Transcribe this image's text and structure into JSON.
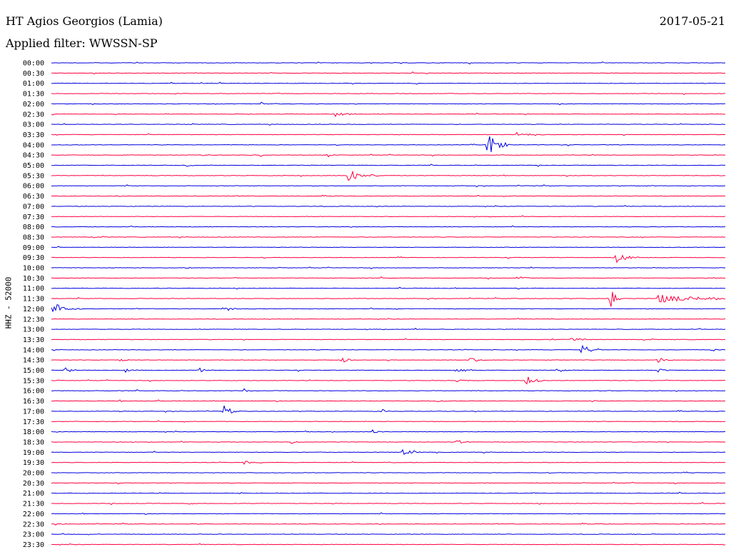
{
  "header": {
    "station": "HT Agios Georgios (Lamia)",
    "date": "2017-05-21",
    "filter": "Applied filter: WWSSN-SP"
  },
  "colors": {
    "blue": "#0000e0",
    "red": "#ff0040"
  },
  "chart_data": {
    "type": "line",
    "ylabel": "HHZ - 52000",
    "rows": [
      {
        "label": "00:00",
        "color": "blue",
        "events": []
      },
      {
        "label": "00:30",
        "color": "red",
        "events": []
      },
      {
        "label": "01:00",
        "color": "blue",
        "events": []
      },
      {
        "label": "01:30",
        "color": "red",
        "events": [
          {
            "t": 0.52,
            "amp": 3,
            "dur": 0.01
          }
        ]
      },
      {
        "label": "02:00",
        "color": "blue",
        "events": [
          {
            "t": 0.31,
            "amp": 3,
            "dur": 0.01
          }
        ]
      },
      {
        "label": "02:30",
        "color": "red",
        "events": [
          {
            "t": 0.42,
            "amp": 4,
            "dur": 0.03
          },
          {
            "t": 0.63,
            "amp": 2,
            "dur": 0.01
          }
        ]
      },
      {
        "label": "03:00",
        "color": "blue",
        "events": []
      },
      {
        "label": "03:30",
        "color": "red",
        "events": [
          {
            "t": 0.69,
            "amp": 3,
            "dur": 0.04
          }
        ]
      },
      {
        "label": "04:00",
        "color": "blue",
        "events": [
          {
            "t": 0.645,
            "amp": 20,
            "dur": 0.03
          }
        ]
      },
      {
        "label": "04:30",
        "color": "red",
        "events": [
          {
            "t": 0.31,
            "amp": 5,
            "dur": 0.005
          },
          {
            "t": 0.41,
            "amp": 3,
            "dur": 0.01
          },
          {
            "t": 0.22,
            "amp": 2,
            "dur": 0.01
          }
        ]
      },
      {
        "label": "05:00",
        "color": "blue",
        "events": [
          {
            "t": 0.38,
            "amp": 2,
            "dur": 0.01
          },
          {
            "t": 0.2,
            "amp": 2,
            "dur": 0.01
          }
        ]
      },
      {
        "label": "05:30",
        "color": "red",
        "events": [
          {
            "t": 0.44,
            "amp": 9,
            "dur": 0.04
          }
        ]
      },
      {
        "label": "06:00",
        "color": "blue",
        "events": [
          {
            "t": 0.88,
            "amp": 2,
            "dur": 0.01
          }
        ]
      },
      {
        "label": "06:30",
        "color": "red",
        "events": []
      },
      {
        "label": "07:00",
        "color": "blue",
        "events": []
      },
      {
        "label": "07:30",
        "color": "red",
        "events": []
      },
      {
        "label": "08:00",
        "color": "blue",
        "events": []
      },
      {
        "label": "08:30",
        "color": "red",
        "events": []
      },
      {
        "label": "09:00",
        "color": "blue",
        "events": []
      },
      {
        "label": "09:30",
        "color": "red",
        "events": [
          {
            "t": 0.835,
            "amp": 9,
            "dur": 0.03
          }
        ]
      },
      {
        "label": "10:00",
        "color": "blue",
        "events": [
          {
            "t": 0.2,
            "amp": 2,
            "dur": 0.01
          }
        ]
      },
      {
        "label": "10:30",
        "color": "red",
        "events": [
          {
            "t": 0.69,
            "amp": 2,
            "dur": 0.03
          }
        ]
      },
      {
        "label": "11:00",
        "color": "blue",
        "events": []
      },
      {
        "label": "11:30",
        "color": "red",
        "events": [
          {
            "t": 0.83,
            "amp": 35,
            "dur": 0.01
          },
          {
            "t": 0.9,
            "amp": 6,
            "dur": 0.1
          }
        ]
      },
      {
        "label": "12:00",
        "color": "blue",
        "events": [
          {
            "t": 0.0,
            "amp": 9,
            "dur": 0.04
          },
          {
            "t": 0.26,
            "amp": 4,
            "dur": 0.01
          }
        ]
      },
      {
        "label": "12:30",
        "color": "red",
        "events": []
      },
      {
        "label": "13:00",
        "color": "blue",
        "events": []
      },
      {
        "label": "13:30",
        "color": "red",
        "events": [
          {
            "t": 0.77,
            "amp": 4,
            "dur": 0.03
          },
          {
            "t": 0.74,
            "amp": 2,
            "dur": 0.01
          }
        ]
      },
      {
        "label": "14:00",
        "color": "blue",
        "events": [
          {
            "t": 0.785,
            "amp": 7,
            "dur": 0.03
          },
          {
            "t": 0.98,
            "amp": 5,
            "dur": 0.01
          }
        ]
      },
      {
        "label": "14:30",
        "color": "red",
        "events": [
          {
            "t": 0.43,
            "amp": 4,
            "dur": 0.02
          },
          {
            "t": 0.62,
            "amp": 5,
            "dur": 0.02
          },
          {
            "t": 0.9,
            "amp": 4,
            "dur": 0.02
          },
          {
            "t": 0.1,
            "amp": 2,
            "dur": 0.02
          }
        ]
      },
      {
        "label": "15:00",
        "color": "blue",
        "events": [
          {
            "t": 0.02,
            "amp": 4,
            "dur": 0.02
          },
          {
            "t": 0.11,
            "amp": 3,
            "dur": 0.02
          },
          {
            "t": 0.22,
            "amp": 3,
            "dur": 0.02
          },
          {
            "t": 0.6,
            "amp": 4,
            "dur": 0.03
          },
          {
            "t": 0.75,
            "amp": 4,
            "dur": 0.02
          },
          {
            "t": 0.9,
            "amp": 3,
            "dur": 0.02
          }
        ]
      },
      {
        "label": "15:30",
        "color": "red",
        "events": [
          {
            "t": 0.705,
            "amp": 10,
            "dur": 0.02
          },
          {
            "t": 0.6,
            "amp": 2,
            "dur": 0.03
          }
        ]
      },
      {
        "label": "16:00",
        "color": "blue",
        "events": [
          {
            "t": 0.285,
            "amp": 3,
            "dur": 0.01
          }
        ]
      },
      {
        "label": "16:30",
        "color": "red",
        "events": [
          {
            "t": 0.1,
            "amp": 2,
            "dur": 0.01
          },
          {
            "t": 0.57,
            "amp": 2,
            "dur": 0.02
          },
          {
            "t": 0.8,
            "amp": 2,
            "dur": 0.01
          }
        ]
      },
      {
        "label": "17:00",
        "color": "blue",
        "events": [
          {
            "t": 0.255,
            "amp": 9,
            "dur": 0.02
          },
          {
            "t": 0.49,
            "amp": 4,
            "dur": 0.01
          },
          {
            "t": 0.1,
            "amp": 2,
            "dur": 0.01
          }
        ]
      },
      {
        "label": "17:30",
        "color": "red",
        "events": []
      },
      {
        "label": "18:00",
        "color": "blue",
        "events": [
          {
            "t": 0.475,
            "amp": 3,
            "dur": 0.02
          },
          {
            "t": 0.385,
            "amp": 2,
            "dur": 0.01
          }
        ]
      },
      {
        "label": "18:30",
        "color": "red",
        "events": [
          {
            "t": 0.355,
            "amp": 3,
            "dur": 0.02
          },
          {
            "t": 0.6,
            "amp": 4,
            "dur": 0.02
          },
          {
            "t": 0.1,
            "amp": 2,
            "dur": 0.01
          }
        ]
      },
      {
        "label": "19:00",
        "color": "blue",
        "events": [
          {
            "t": 0.52,
            "amp": 4,
            "dur": 0.03
          }
        ]
      },
      {
        "label": "19:30",
        "color": "red",
        "events": [
          {
            "t": 0.285,
            "amp": 3,
            "dur": 0.02
          },
          {
            "t": 0.495,
            "amp": 2,
            "dur": 0.02
          }
        ]
      },
      {
        "label": "20:00",
        "color": "blue",
        "events": []
      },
      {
        "label": "20:30",
        "color": "red",
        "events": []
      },
      {
        "label": "21:00",
        "color": "blue",
        "events": [
          {
            "t": 0.28,
            "amp": 2,
            "dur": 0.01
          }
        ]
      },
      {
        "label": "21:30",
        "color": "red",
        "events": [
          {
            "t": 0.2,
            "amp": 2,
            "dur": 0.02
          }
        ]
      },
      {
        "label": "22:00",
        "color": "blue",
        "events": []
      },
      {
        "label": "22:30",
        "color": "red",
        "events": []
      },
      {
        "label": "23:00",
        "color": "blue",
        "events": [
          {
            "t": 0.86,
            "amp": 1,
            "dur": 0.02
          }
        ]
      },
      {
        "label": "23:30",
        "color": "red",
        "events": []
      }
    ]
  }
}
